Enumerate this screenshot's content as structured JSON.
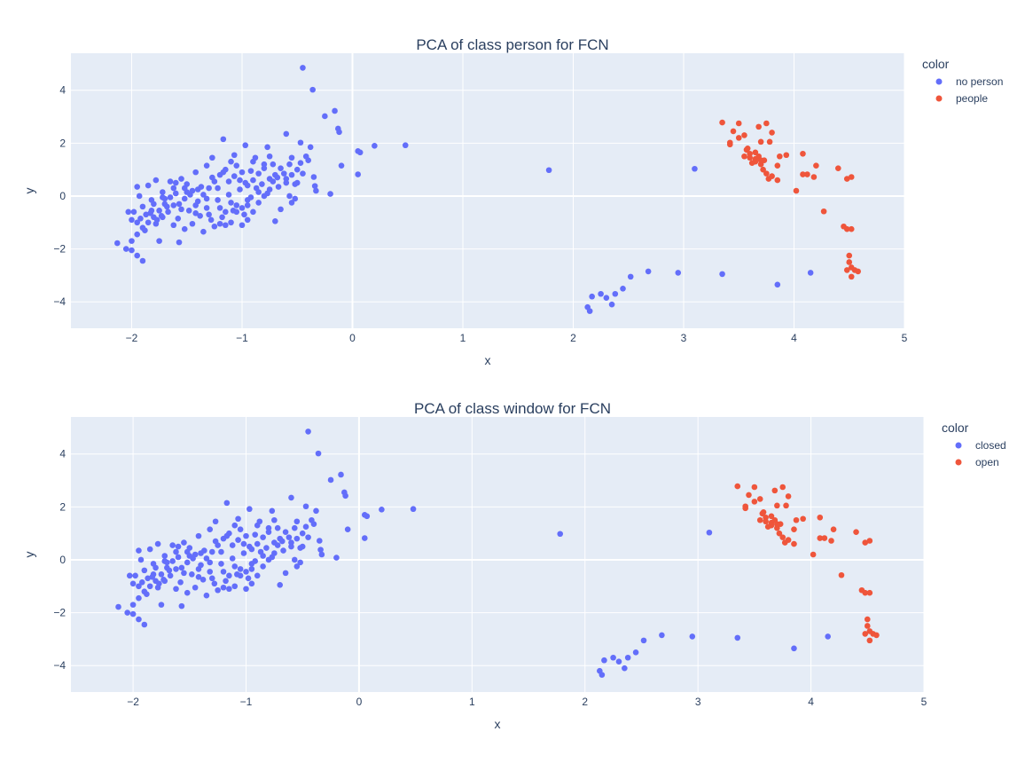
{
  "chart_data": [
    {
      "type": "scatter",
      "title": "PCA of class person  for FCN",
      "xlabel": "x",
      "ylabel": "y",
      "xlim": [
        -2.55,
        5
      ],
      "ylim": [
        -5,
        5.4
      ],
      "xticks": [
        -2,
        -1,
        0,
        1,
        2,
        3,
        4,
        5
      ],
      "xtick_labels": [
        "−2",
        "−1",
        "0",
        "1",
        "2",
        "3",
        "4",
        "5"
      ],
      "yticks": [
        -4,
        -2,
        0,
        2,
        4
      ],
      "ytick_labels": [
        "−4",
        "−2",
        "0",
        "2",
        "4"
      ],
      "legend_title": "color",
      "legend_position": "right",
      "series": [
        {
          "name": "no person",
          "color": "#636efa",
          "points": "A"
        },
        {
          "name": "people",
          "color": "#ef553b",
          "points": "B"
        }
      ]
    },
    {
      "type": "scatter",
      "title": "PCA of class window  for FCN",
      "xlabel": "x",
      "ylabel": "y",
      "xlim": [
        -2.55,
        5
      ],
      "ylim": [
        -5,
        5.4
      ],
      "xticks": [
        -2,
        -1,
        0,
        1,
        2,
        3,
        4,
        5
      ],
      "xtick_labels": [
        "−2",
        "−1",
        "0",
        "1",
        "2",
        "3",
        "4",
        "5"
      ],
      "yticks": [
        -4,
        -2,
        0,
        2,
        4
      ],
      "ytick_labels": [
        "−4",
        "−2",
        "0",
        "2",
        "4"
      ],
      "legend_title": "color",
      "legend_position": "right",
      "series": [
        {
          "name": "closed",
          "color": "#636efa",
          "points": "A"
        },
        {
          "name": "open",
          "color": "#ef553b",
          "points": "B"
        }
      ]
    }
  ],
  "point_sets": {
    "A": [
      [
        -0.45,
        4.85
      ],
      [
        -0.36,
        4.02
      ],
      [
        -0.25,
        3.02
      ],
      [
        -0.16,
        3.22
      ],
      [
        -0.13,
        2.55
      ],
      [
        -0.12,
        2.42
      ],
      [
        -0.47,
        2.02
      ],
      [
        -0.38,
        1.85
      ],
      [
        -0.6,
        2.35
      ],
      [
        -0.2,
        0.08
      ],
      [
        -0.34,
        0.38
      ],
      [
        -0.33,
        0.2
      ],
      [
        -0.1,
        1.15
      ],
      [
        -0.35,
        0.72
      ],
      [
        -0.42,
        1.5
      ],
      [
        -0.4,
        1.35
      ],
      [
        -0.5,
        1.0
      ],
      [
        -0.55,
        0.8
      ],
      [
        -0.52,
        0.45
      ],
      [
        -0.6,
        0.5
      ],
      [
        -0.68,
        0.7
      ],
      [
        -0.72,
        1.2
      ],
      [
        -0.75,
        1.5
      ],
      [
        -0.8,
        1.05
      ],
      [
        -0.85,
        0.85
      ],
      [
        -0.9,
        0.6
      ],
      [
        -0.95,
        0.4
      ],
      [
        -1.0,
        0.9
      ],
      [
        -1.05,
        1.15
      ],
      [
        -1.1,
        1.3
      ],
      [
        -1.15,
        1.0
      ],
      [
        -1.2,
        0.8
      ],
      [
        -1.25,
        0.55
      ],
      [
        -1.3,
        0.3
      ],
      [
        -1.35,
        0.05
      ],
      [
        -1.4,
        -0.2
      ],
      [
        -1.45,
        0.2
      ],
      [
        -1.5,
        0.45
      ],
      [
        -1.55,
        0.65
      ],
      [
        -1.6,
        0.1
      ],
      [
        -1.65,
        -0.05
      ],
      [
        -1.7,
        -0.3
      ],
      [
        -1.75,
        -0.55
      ],
      [
        -1.8,
        -0.8
      ],
      [
        -1.85,
        -1.0
      ],
      [
        -1.9,
        -1.2
      ],
      [
        -1.95,
        -1.45
      ],
      [
        -2.0,
        -1.7
      ],
      [
        -2.05,
        -2.0
      ],
      [
        -2.13,
        -1.78
      ],
      [
        -1.9,
        -2.45
      ],
      [
        -1.95,
        -2.25
      ],
      [
        -2.0,
        -2.05
      ],
      [
        -1.75,
        -1.7
      ],
      [
        -1.57,
        -1.75
      ],
      [
        -1.85,
        0.4
      ],
      [
        -1.95,
        0.35
      ],
      [
        -2.03,
        -0.6
      ],
      [
        -1.98,
        -0.6
      ],
      [
        -1.93,
        0.0
      ],
      [
        -1.78,
        0.6
      ],
      [
        -1.65,
        0.55
      ],
      [
        -1.55,
        -0.5
      ],
      [
        -1.45,
        -1.05
      ],
      [
        -1.35,
        -1.35
      ],
      [
        -1.2,
        -1.05
      ],
      [
        -1.1,
        -1.0
      ],
      [
        -1.0,
        -1.1
      ],
      [
        -0.95,
        -0.9
      ],
      [
        -0.9,
        -0.6
      ],
      [
        -0.85,
        -0.25
      ],
      [
        -0.8,
        0.0
      ],
      [
        -0.75,
        0.25
      ],
      [
        -0.7,
        -0.95
      ],
      [
        -0.65,
        -0.5
      ],
      [
        -0.55,
        -0.25
      ],
      [
        -0.52,
        -0.1
      ],
      [
        -1.17,
        2.15
      ],
      [
        -0.97,
        1.92
      ],
      [
        -0.77,
        1.85
      ],
      [
        -0.88,
        1.45
      ],
      [
        -1.07,
        1.55
      ],
      [
        -1.27,
        1.45
      ],
      [
        -1.32,
        1.15
      ],
      [
        -1.42,
        0.9
      ],
      [
        -1.52,
        0.3
      ],
      [
        -1.62,
        -0.35
      ],
      [
        -1.72,
        0.15
      ],
      [
        -1.82,
        -0.15
      ],
      [
        -1.72,
        -0.8
      ],
      [
        -1.62,
        -1.1
      ],
      [
        -1.52,
        -1.25
      ],
      [
        -1.42,
        -0.65
      ],
      [
        -1.32,
        -0.45
      ],
      [
        -1.22,
        -0.15
      ],
      [
        -1.12,
        0.05
      ],
      [
        -1.02,
        0.25
      ],
      [
        -0.92,
        -0.05
      ],
      [
        -0.82,
        0.45
      ],
      [
        -0.72,
        0.55
      ],
      [
        -0.62,
        0.85
      ],
      [
        -0.57,
        1.2
      ],
      [
        -0.47,
        1.25
      ],
      [
        -0.92,
        0.95
      ],
      [
        -1.02,
        0.6
      ],
      [
        -1.12,
        0.55
      ],
      [
        -1.22,
        0.3
      ],
      [
        -1.32,
        -0.1
      ],
      [
        -1.42,
        -0.35
      ],
      [
        -1.52,
        -0.1
      ],
      [
        -1.62,
        0.3
      ],
      [
        -1.72,
        -0.05
      ],
      [
        -1.82,
        -0.55
      ],
      [
        -1.92,
        -0.85
      ],
      [
        -1.87,
        -0.7
      ],
      [
        -1.77,
        -0.9
      ],
      [
        -1.67,
        -0.6
      ],
      [
        -1.57,
        -0.3
      ],
      [
        -1.47,
        0.05
      ],
      [
        -1.37,
        0.35
      ],
      [
        -1.27,
        0.7
      ],
      [
        -1.17,
        0.9
      ],
      [
        -1.07,
        0.75
      ],
      [
        -0.97,
        0.5
      ],
      [
        -0.87,
        0.3
      ],
      [
        -0.77,
        0.1
      ],
      [
        -0.67,
        0.35
      ],
      [
        -0.57,
        0.0
      ],
      [
        -1.15,
        -0.6
      ],
      [
        -1.05,
        -0.35
      ],
      [
        -0.95,
        -0.15
      ],
      [
        -0.85,
        0.15
      ],
      [
        -0.75,
        0.65
      ],
      [
        -0.65,
        1.05
      ],
      [
        -0.55,
        1.45
      ],
      [
        -1.9,
        -0.4
      ],
      [
        -1.8,
        -0.3
      ],
      [
        -1.7,
        -0.1
      ],
      [
        -1.6,
        0.5
      ],
      [
        -1.5,
        0.15
      ],
      [
        -1.4,
        0.25
      ],
      [
        -1.3,
        -0.7
      ],
      [
        -1.2,
        -0.45
      ],
      [
        -1.1,
        -0.25
      ],
      [
        -1.0,
        -0.45
      ],
      [
        -0.9,
        1.3
      ],
      [
        -0.8,
        1.2
      ],
      [
        -0.7,
        0.8
      ],
      [
        -0.6,
        0.65
      ],
      [
        -0.5,
        0.5
      ],
      [
        -0.45,
        0.85
      ],
      [
        0.05,
        1.7
      ],
      [
        0.07,
        1.65
      ],
      [
        0.2,
        1.9
      ],
      [
        0.48,
        1.92
      ],
      [
        0.05,
        0.82
      ],
      [
        1.78,
        0.98
      ],
      [
        3.1,
        1.03
      ],
      [
        2.13,
        -4.2
      ],
      [
        2.15,
        -4.35
      ],
      [
        2.17,
        -3.8
      ],
      [
        2.25,
        -3.7
      ],
      [
        2.3,
        -3.85
      ],
      [
        2.35,
        -4.1
      ],
      [
        2.38,
        -3.7
      ],
      [
        2.45,
        -3.5
      ],
      [
        2.52,
        -3.05
      ],
      [
        2.68,
        -2.85
      ],
      [
        2.95,
        -2.9
      ],
      [
        3.35,
        -2.95
      ],
      [
        3.85,
        -3.35
      ],
      [
        4.15,
        -2.9
      ],
      [
        -2.0,
        -0.9
      ],
      [
        -1.95,
        -1.0
      ],
      [
        -1.88,
        -1.3
      ],
      [
        -1.83,
        -0.65
      ],
      [
        -1.78,
        -1.05
      ],
      [
        -1.73,
        -0.75
      ],
      [
        -1.68,
        -0.4
      ],
      [
        -1.58,
        -0.85
      ],
      [
        -1.48,
        -0.55
      ],
      [
        -1.38,
        -0.75
      ],
      [
        -1.28,
        -0.9
      ],
      [
        -1.18,
        -0.8
      ],
      [
        -1.08,
        -0.55
      ],
      [
        -0.98,
        -0.7
      ],
      [
        -1.25,
        -1.15
      ],
      [
        -1.15,
        -1.1
      ],
      [
        -1.05,
        -0.6
      ],
      [
        -0.95,
        -0.35
      ]
    ],
    "B": [
      [
        3.35,
        2.78
      ],
      [
        3.45,
        2.45
      ],
      [
        3.5,
        2.75
      ],
      [
        3.55,
        2.3
      ],
      [
        3.42,
        1.95
      ],
      [
        3.42,
        2.02
      ],
      [
        3.57,
        1.75
      ],
      [
        3.6,
        1.6
      ],
      [
        3.65,
        1.4
      ],
      [
        3.68,
        2.62
      ],
      [
        3.7,
        2.05
      ],
      [
        3.65,
        1.3
      ],
      [
        3.68,
        1.5
      ],
      [
        3.7,
        1.2
      ],
      [
        3.72,
        1.0
      ],
      [
        3.75,
        2.75
      ],
      [
        3.8,
        2.4
      ],
      [
        3.78,
        2.05
      ],
      [
        3.73,
        1.35
      ],
      [
        3.75,
        0.85
      ],
      [
        3.8,
        0.75
      ],
      [
        3.77,
        0.65
      ],
      [
        3.85,
        1.15
      ],
      [
        3.87,
        1.5
      ],
      [
        3.85,
        0.6
      ],
      [
        3.93,
        1.55
      ],
      [
        4.02,
        0.2
      ],
      [
        4.08,
        1.6
      ],
      [
        4.08,
        0.82
      ],
      [
        4.12,
        0.82
      ],
      [
        4.18,
        0.72
      ],
      [
        4.2,
        1.15
      ],
      [
        4.27,
        -0.58
      ],
      [
        4.4,
        1.05
      ],
      [
        4.48,
        0.65
      ],
      [
        4.52,
        0.72
      ],
      [
        4.45,
        -1.15
      ],
      [
        4.48,
        -1.25
      ],
      [
        4.52,
        -1.25
      ],
      [
        4.5,
        -2.25
      ],
      [
        4.5,
        -2.5
      ],
      [
        4.52,
        -2.7
      ],
      [
        4.48,
        -2.8
      ],
      [
        4.55,
        -2.8
      ],
      [
        4.58,
        -2.85
      ],
      [
        4.52,
        -3.05
      ],
      [
        3.65,
        1.65
      ],
      [
        3.6,
        1.45
      ],
      [
        3.7,
        1.35
      ],
      [
        3.55,
        1.5
      ],
      [
        3.5,
        2.2
      ],
      [
        3.58,
        1.8
      ],
      [
        3.62,
        1.25
      ]
    ]
  }
}
